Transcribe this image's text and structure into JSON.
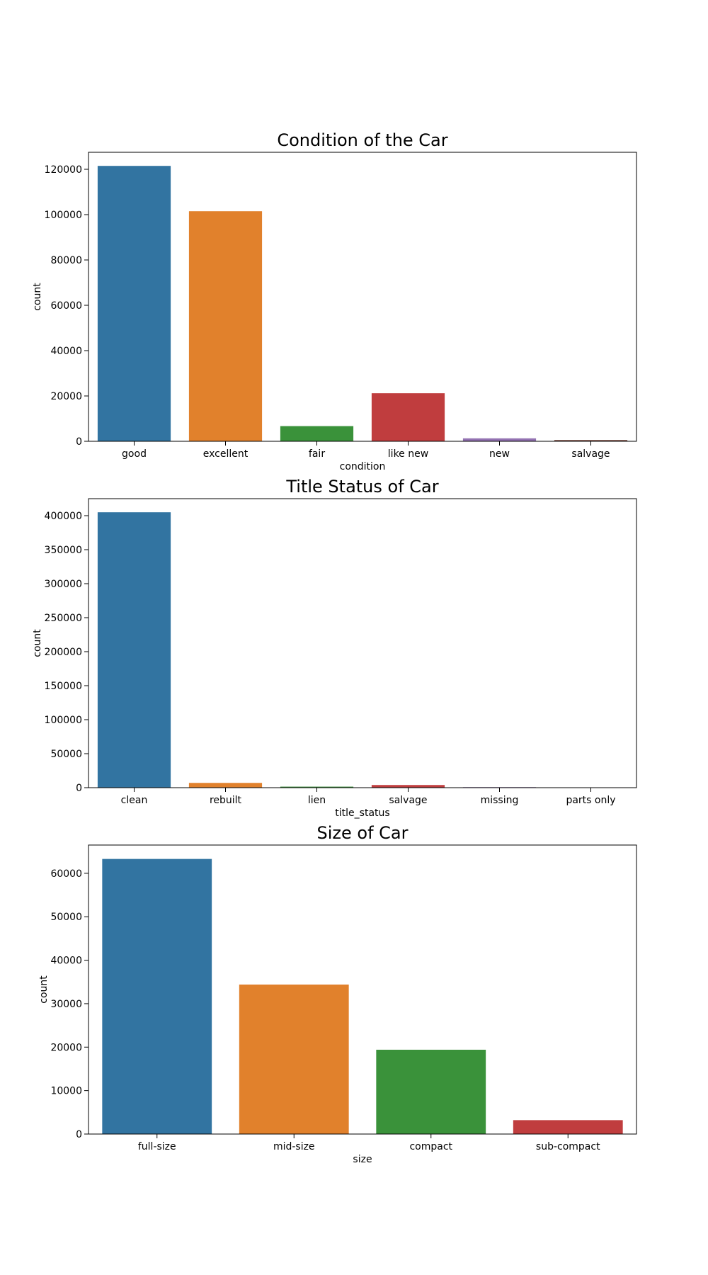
{
  "chart_data": [
    {
      "type": "bar",
      "title": "Condition of the Car",
      "xlabel": "condition",
      "ylabel": "count",
      "categories": [
        "good",
        "excellent",
        "fair",
        "like new",
        "new",
        "salvage"
      ],
      "values": [
        121500,
        101500,
        6700,
        21200,
        1300,
        600
      ],
      "ylim": [
        0,
        127500
      ],
      "yticks": [
        0,
        20000,
        40000,
        60000,
        80000,
        100000,
        120000
      ],
      "colors": [
        "#3274a1",
        "#e1812c",
        "#3a923a",
        "#c03d3e",
        "#9372b2",
        "#845b53"
      ],
      "grid": false
    },
    {
      "type": "bar",
      "title": "Title Status of Car",
      "xlabel": "title_status",
      "ylabel": "count",
      "categories": [
        "clean",
        "rebuilt",
        "lien",
        "salvage",
        "missing",
        "parts only"
      ],
      "values": [
        405000,
        7000,
        1500,
        3900,
        800,
        200
      ],
      "ylim": [
        0,
        425000
      ],
      "yticks": [
        0,
        50000,
        100000,
        150000,
        200000,
        250000,
        300000,
        350000,
        400000
      ],
      "colors": [
        "#3274a1",
        "#e1812c",
        "#3a923a",
        "#c03d3e",
        "#9372b2",
        "#845b53"
      ],
      "grid": false
    },
    {
      "type": "bar",
      "title": "Size of Car",
      "xlabel": "size",
      "ylabel": "count",
      "categories": [
        "full-size",
        "mid-size",
        "compact",
        "sub-compact"
      ],
      "values": [
        63300,
        34400,
        19400,
        3200
      ],
      "ylim": [
        0,
        66500
      ],
      "yticks": [
        0,
        10000,
        20000,
        30000,
        40000,
        50000,
        60000
      ],
      "colors": [
        "#3274a1",
        "#e1812c",
        "#3a923a",
        "#c03d3e"
      ],
      "grid": false
    }
  ]
}
